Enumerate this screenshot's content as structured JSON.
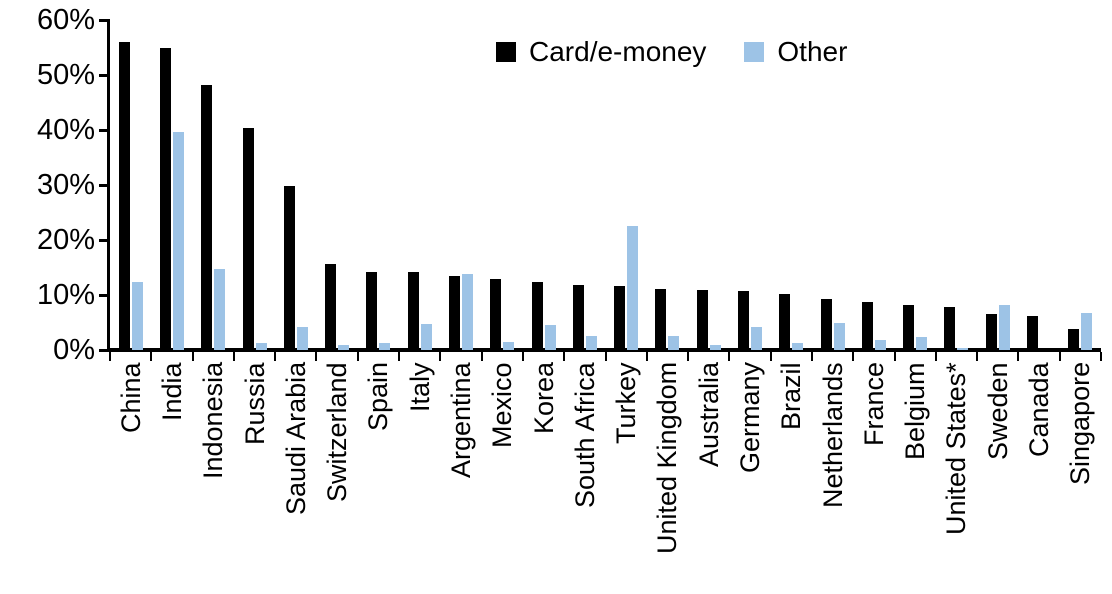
{
  "chart_data": {
    "type": "bar",
    "title": "",
    "xlabel": "",
    "ylabel": "",
    "ylim": [
      0,
      60
    ],
    "grid": false,
    "legend_position": "top-center",
    "y_ticks": [
      {
        "label": "0%",
        "value": 0
      },
      {
        "label": "10%",
        "value": 10
      },
      {
        "label": "20%",
        "value": 20
      },
      {
        "label": "30%",
        "value": 30
      },
      {
        "label": "40%",
        "value": 40
      },
      {
        "label": "50%",
        "value": 50
      },
      {
        "label": "60%",
        "value": 60
      }
    ],
    "categories": [
      "China",
      "India",
      "Indonesia",
      "Russia",
      "Saudi Arabia",
      "Switzerland",
      "Spain",
      "Italy",
      "Argentina",
      "Mexico",
      "Korea",
      "South Africa",
      "Turkey",
      "United Kingdom",
      "Australia",
      "Germany",
      "Brazil",
      "Netherlands",
      "France",
      "Belgium",
      "United States*",
      "Sweden",
      "Canada",
      "Singapore"
    ],
    "series": [
      {
        "name": "Card/e-money",
        "color": "#000000",
        "values": [
          56,
          55,
          48.2,
          40.4,
          29.8,
          15.7,
          14.2,
          14.2,
          13.5,
          13,
          12.3,
          11.8,
          11.6,
          11.1,
          10.9,
          10.8,
          10.1,
          9.3,
          8.8,
          8.2,
          7.9,
          6.5,
          6.1,
          3.9
        ]
      },
      {
        "name": "Other",
        "color": "#9dc3e6",
        "values": [
          12.4,
          39.6,
          14.7,
          1.3,
          4.1,
          1.0,
          1.2,
          4.7,
          13.9,
          1.5,
          4.5,
          2.5,
          22.5,
          2.6,
          1.0,
          4.1,
          1.3,
          5.0,
          1.8,
          2.3,
          0.4,
          8.1,
          0,
          6.8
        ]
      }
    ]
  }
}
